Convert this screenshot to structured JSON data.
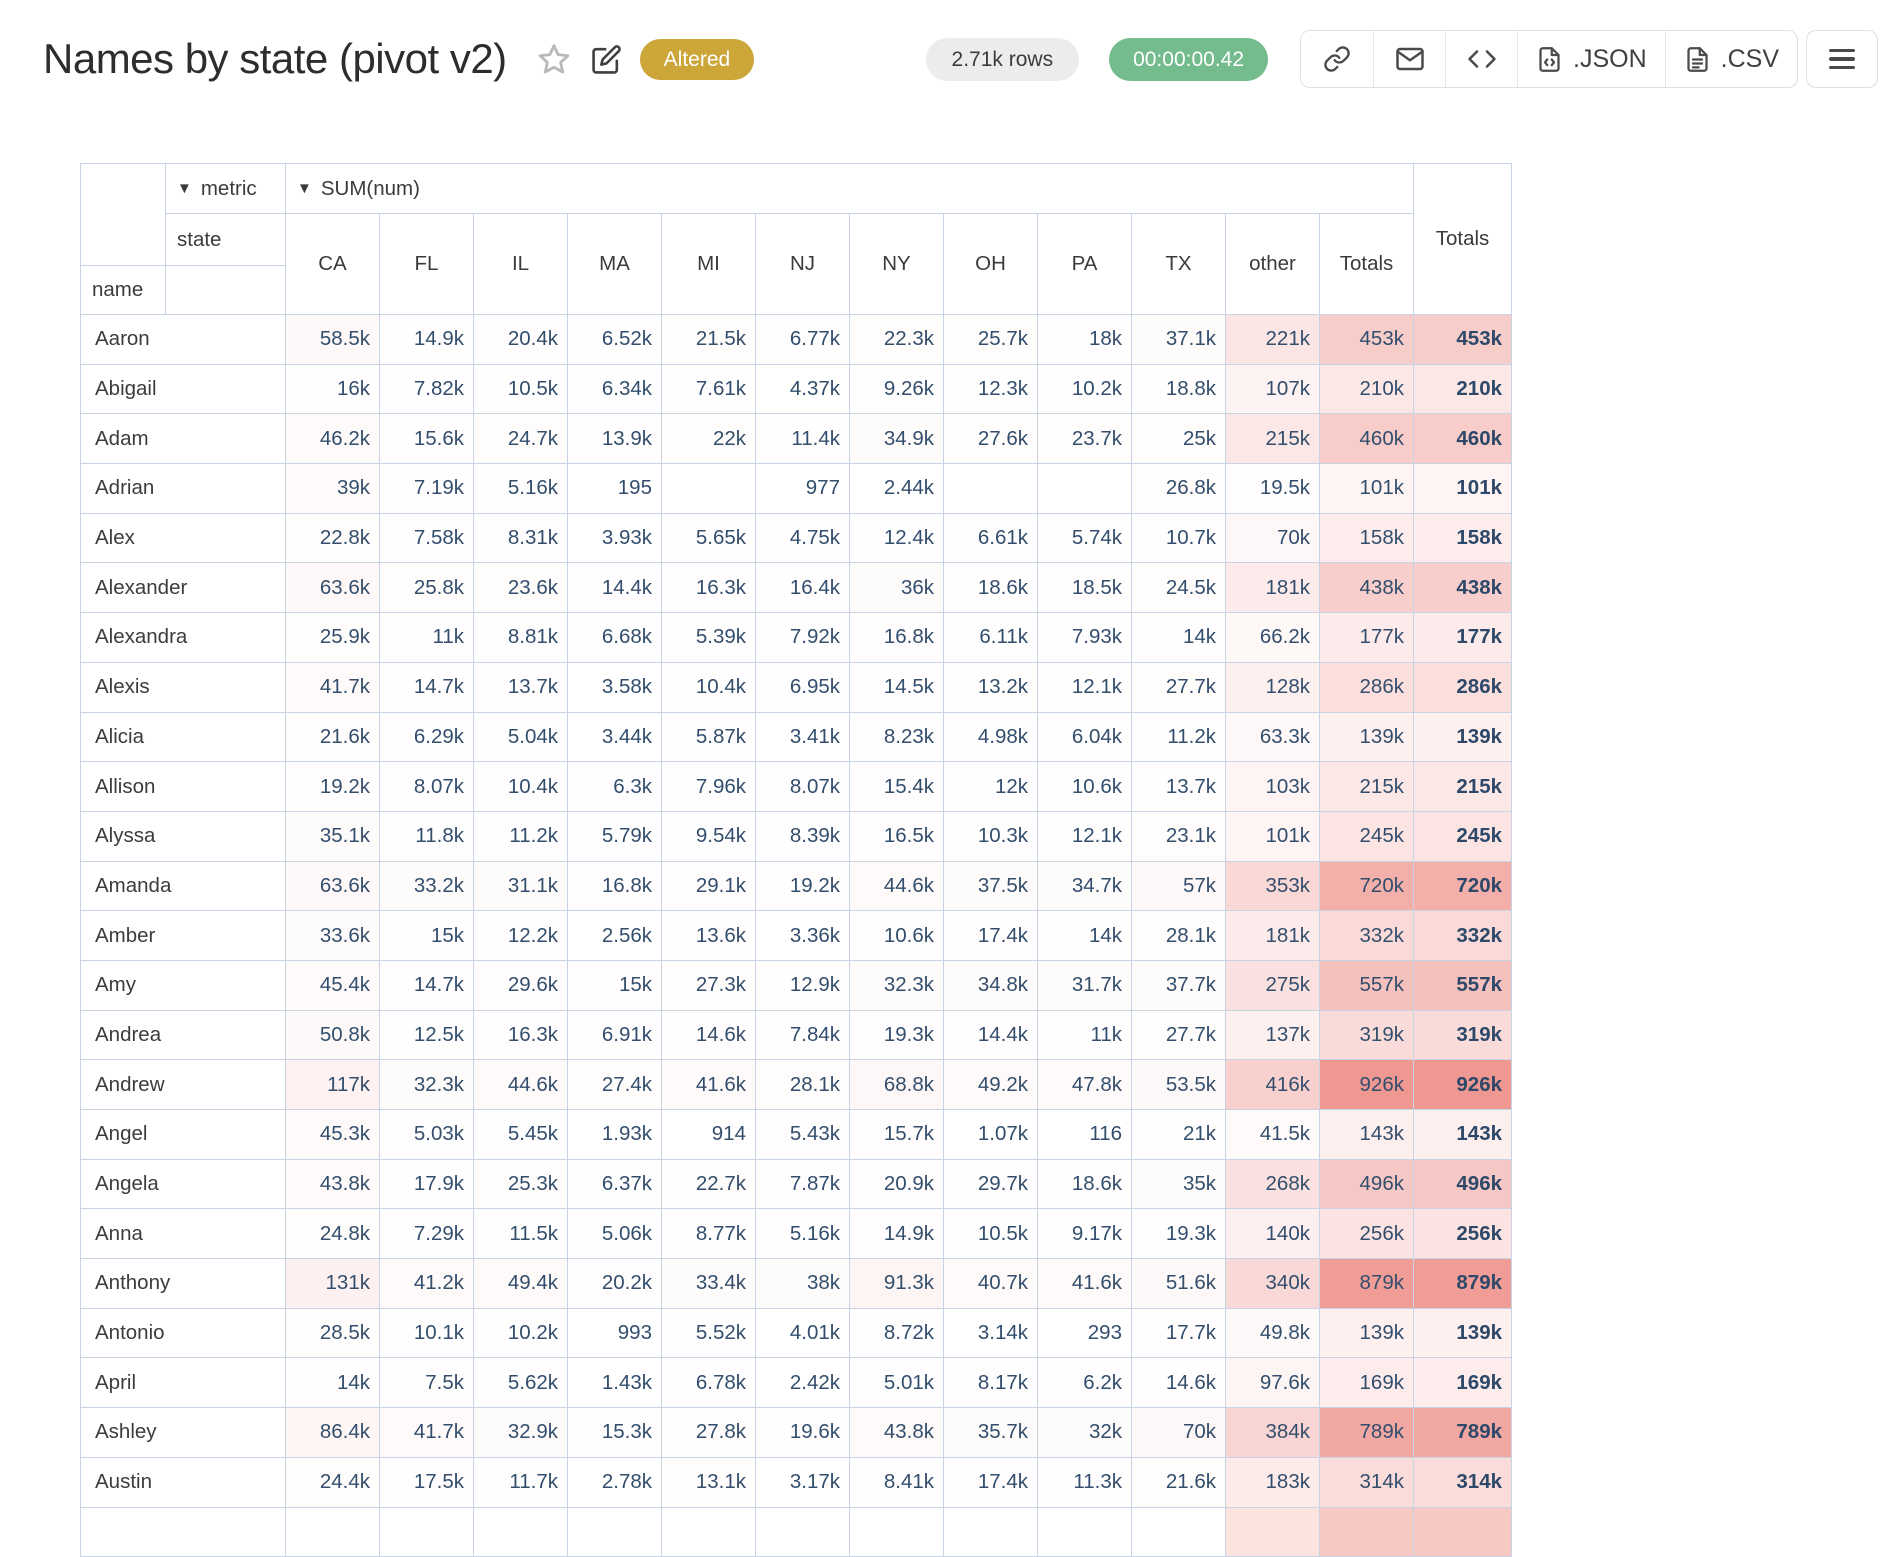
{
  "header": {
    "title": "Names by state (pivot v2)",
    "status_badge": "Altered",
    "rows_badge": "2.71k rows",
    "time_badge": "00:00:00.42",
    "export_json_label": ".JSON",
    "export_csv_label": ".CSV"
  },
  "icons": {
    "star": "star-outline",
    "edit": "pencil-square",
    "link": "chain-link",
    "email": "envelope",
    "embed": "code-angle-brackets",
    "json_file": "file-code",
    "csv_file": "file-text",
    "menu": "hamburger",
    "dropdown": "down-triangle"
  },
  "colors": {
    "altered_badge": "#cda63a",
    "time_badge": "#74bb8e",
    "table_border": "#c8d3e3",
    "number_text": "#334e6d",
    "heat_max": "#ef9892"
  },
  "pivot": {
    "metric_label": "metric",
    "metric_value": "SUM(num)",
    "state_label": "state",
    "name_label": "name",
    "totals_label": "Totals",
    "columns": [
      "CA",
      "FL",
      "IL",
      "MA",
      "MI",
      "NJ",
      "NY",
      "OH",
      "PA",
      "TX",
      "other",
      "Totals"
    ],
    "rows": [
      {
        "name": "Aaron",
        "values": [
          "58.5k",
          "14.9k",
          "20.4k",
          "6.52k",
          "21.5k",
          "6.77k",
          "22.3k",
          "25.7k",
          "18k",
          "37.1k",
          "221k",
          "453k"
        ],
        "total": "453k"
      },
      {
        "name": "Abigail",
        "values": [
          "16k",
          "7.82k",
          "10.5k",
          "6.34k",
          "7.61k",
          "4.37k",
          "9.26k",
          "12.3k",
          "10.2k",
          "18.8k",
          "107k",
          "210k"
        ],
        "total": "210k"
      },
      {
        "name": "Adam",
        "values": [
          "46.2k",
          "15.6k",
          "24.7k",
          "13.9k",
          "22k",
          "11.4k",
          "34.9k",
          "27.6k",
          "23.7k",
          "25k",
          "215k",
          "460k"
        ],
        "total": "460k"
      },
      {
        "name": "Adrian",
        "values": [
          "39k",
          "7.19k",
          "5.16k",
          "195",
          "",
          "977",
          "2.44k",
          "",
          "",
          "26.8k",
          "19.5k",
          "101k"
        ],
        "total": "101k"
      },
      {
        "name": "Alex",
        "values": [
          "22.8k",
          "7.58k",
          "8.31k",
          "3.93k",
          "5.65k",
          "4.75k",
          "12.4k",
          "6.61k",
          "5.74k",
          "10.7k",
          "70k",
          "158k"
        ],
        "total": "158k"
      },
      {
        "name": "Alexander",
        "values": [
          "63.6k",
          "25.8k",
          "23.6k",
          "14.4k",
          "16.3k",
          "16.4k",
          "36k",
          "18.6k",
          "18.5k",
          "24.5k",
          "181k",
          "438k"
        ],
        "total": "438k"
      },
      {
        "name": "Alexandra",
        "values": [
          "25.9k",
          "11k",
          "8.81k",
          "6.68k",
          "5.39k",
          "7.92k",
          "16.8k",
          "6.11k",
          "7.93k",
          "14k",
          "66.2k",
          "177k"
        ],
        "total": "177k"
      },
      {
        "name": "Alexis",
        "values": [
          "41.7k",
          "14.7k",
          "13.7k",
          "3.58k",
          "10.4k",
          "6.95k",
          "14.5k",
          "13.2k",
          "12.1k",
          "27.7k",
          "128k",
          "286k"
        ],
        "total": "286k"
      },
      {
        "name": "Alicia",
        "values": [
          "21.6k",
          "6.29k",
          "5.04k",
          "3.44k",
          "5.87k",
          "3.41k",
          "8.23k",
          "4.98k",
          "6.04k",
          "11.2k",
          "63.3k",
          "139k"
        ],
        "total": "139k"
      },
      {
        "name": "Allison",
        "values": [
          "19.2k",
          "8.07k",
          "10.4k",
          "6.3k",
          "7.96k",
          "8.07k",
          "15.4k",
          "12k",
          "10.6k",
          "13.7k",
          "103k",
          "215k"
        ],
        "total": "215k"
      },
      {
        "name": "Alyssa",
        "values": [
          "35.1k",
          "11.8k",
          "11.2k",
          "5.79k",
          "9.54k",
          "8.39k",
          "16.5k",
          "10.3k",
          "12.1k",
          "23.1k",
          "101k",
          "245k"
        ],
        "total": "245k"
      },
      {
        "name": "Amanda",
        "values": [
          "63.6k",
          "33.2k",
          "31.1k",
          "16.8k",
          "29.1k",
          "19.2k",
          "44.6k",
          "37.5k",
          "34.7k",
          "57k",
          "353k",
          "720k"
        ],
        "total": "720k"
      },
      {
        "name": "Amber",
        "values": [
          "33.6k",
          "15k",
          "12.2k",
          "2.56k",
          "13.6k",
          "3.36k",
          "10.6k",
          "17.4k",
          "14k",
          "28.1k",
          "181k",
          "332k"
        ],
        "total": "332k"
      },
      {
        "name": "Amy",
        "values": [
          "45.4k",
          "14.7k",
          "29.6k",
          "15k",
          "27.3k",
          "12.9k",
          "32.3k",
          "34.8k",
          "31.7k",
          "37.7k",
          "275k",
          "557k"
        ],
        "total": "557k"
      },
      {
        "name": "Andrea",
        "values": [
          "50.8k",
          "12.5k",
          "16.3k",
          "6.91k",
          "14.6k",
          "7.84k",
          "19.3k",
          "14.4k",
          "11k",
          "27.7k",
          "137k",
          "319k"
        ],
        "total": "319k"
      },
      {
        "name": "Andrew",
        "values": [
          "117k",
          "32.3k",
          "44.6k",
          "27.4k",
          "41.6k",
          "28.1k",
          "68.8k",
          "49.2k",
          "47.8k",
          "53.5k",
          "416k",
          "926k"
        ],
        "total": "926k"
      },
      {
        "name": "Angel",
        "values": [
          "45.3k",
          "5.03k",
          "5.45k",
          "1.93k",
          "914",
          "5.43k",
          "15.7k",
          "1.07k",
          "116",
          "21k",
          "41.5k",
          "143k"
        ],
        "total": "143k"
      },
      {
        "name": "Angela",
        "values": [
          "43.8k",
          "17.9k",
          "25.3k",
          "6.37k",
          "22.7k",
          "7.87k",
          "20.9k",
          "29.7k",
          "18.6k",
          "35k",
          "268k",
          "496k"
        ],
        "total": "496k"
      },
      {
        "name": "Anna",
        "values": [
          "24.8k",
          "7.29k",
          "11.5k",
          "5.06k",
          "8.77k",
          "5.16k",
          "14.9k",
          "10.5k",
          "9.17k",
          "19.3k",
          "140k",
          "256k"
        ],
        "total": "256k"
      },
      {
        "name": "Anthony",
        "values": [
          "131k",
          "41.2k",
          "49.4k",
          "20.2k",
          "33.4k",
          "38k",
          "91.3k",
          "40.7k",
          "41.6k",
          "51.6k",
          "340k",
          "879k"
        ],
        "total": "879k"
      },
      {
        "name": "Antonio",
        "values": [
          "28.5k",
          "10.1k",
          "10.2k",
          "993",
          "5.52k",
          "4.01k",
          "8.72k",
          "3.14k",
          "293",
          "17.7k",
          "49.8k",
          "139k"
        ],
        "total": "139k"
      },
      {
        "name": "April",
        "values": [
          "14k",
          "7.5k",
          "5.62k",
          "1.43k",
          "6.78k",
          "2.42k",
          "5.01k",
          "8.17k",
          "6.2k",
          "14.6k",
          "97.6k",
          "169k"
        ],
        "total": "169k"
      },
      {
        "name": "Ashley",
        "values": [
          "86.4k",
          "41.7k",
          "32.9k",
          "15.3k",
          "27.8k",
          "19.6k",
          "43.8k",
          "35.7k",
          "32k",
          "70k",
          "384k",
          "789k"
        ],
        "total": "789k"
      },
      {
        "name": "Austin",
        "values": [
          "24.4k",
          "17.5k",
          "11.7k",
          "2.78k",
          "13.1k",
          "3.17k",
          "8.41k",
          "17.4k",
          "11.3k",
          "21.6k",
          "183k",
          "314k"
        ],
        "total": "314k"
      }
    ]
  }
}
